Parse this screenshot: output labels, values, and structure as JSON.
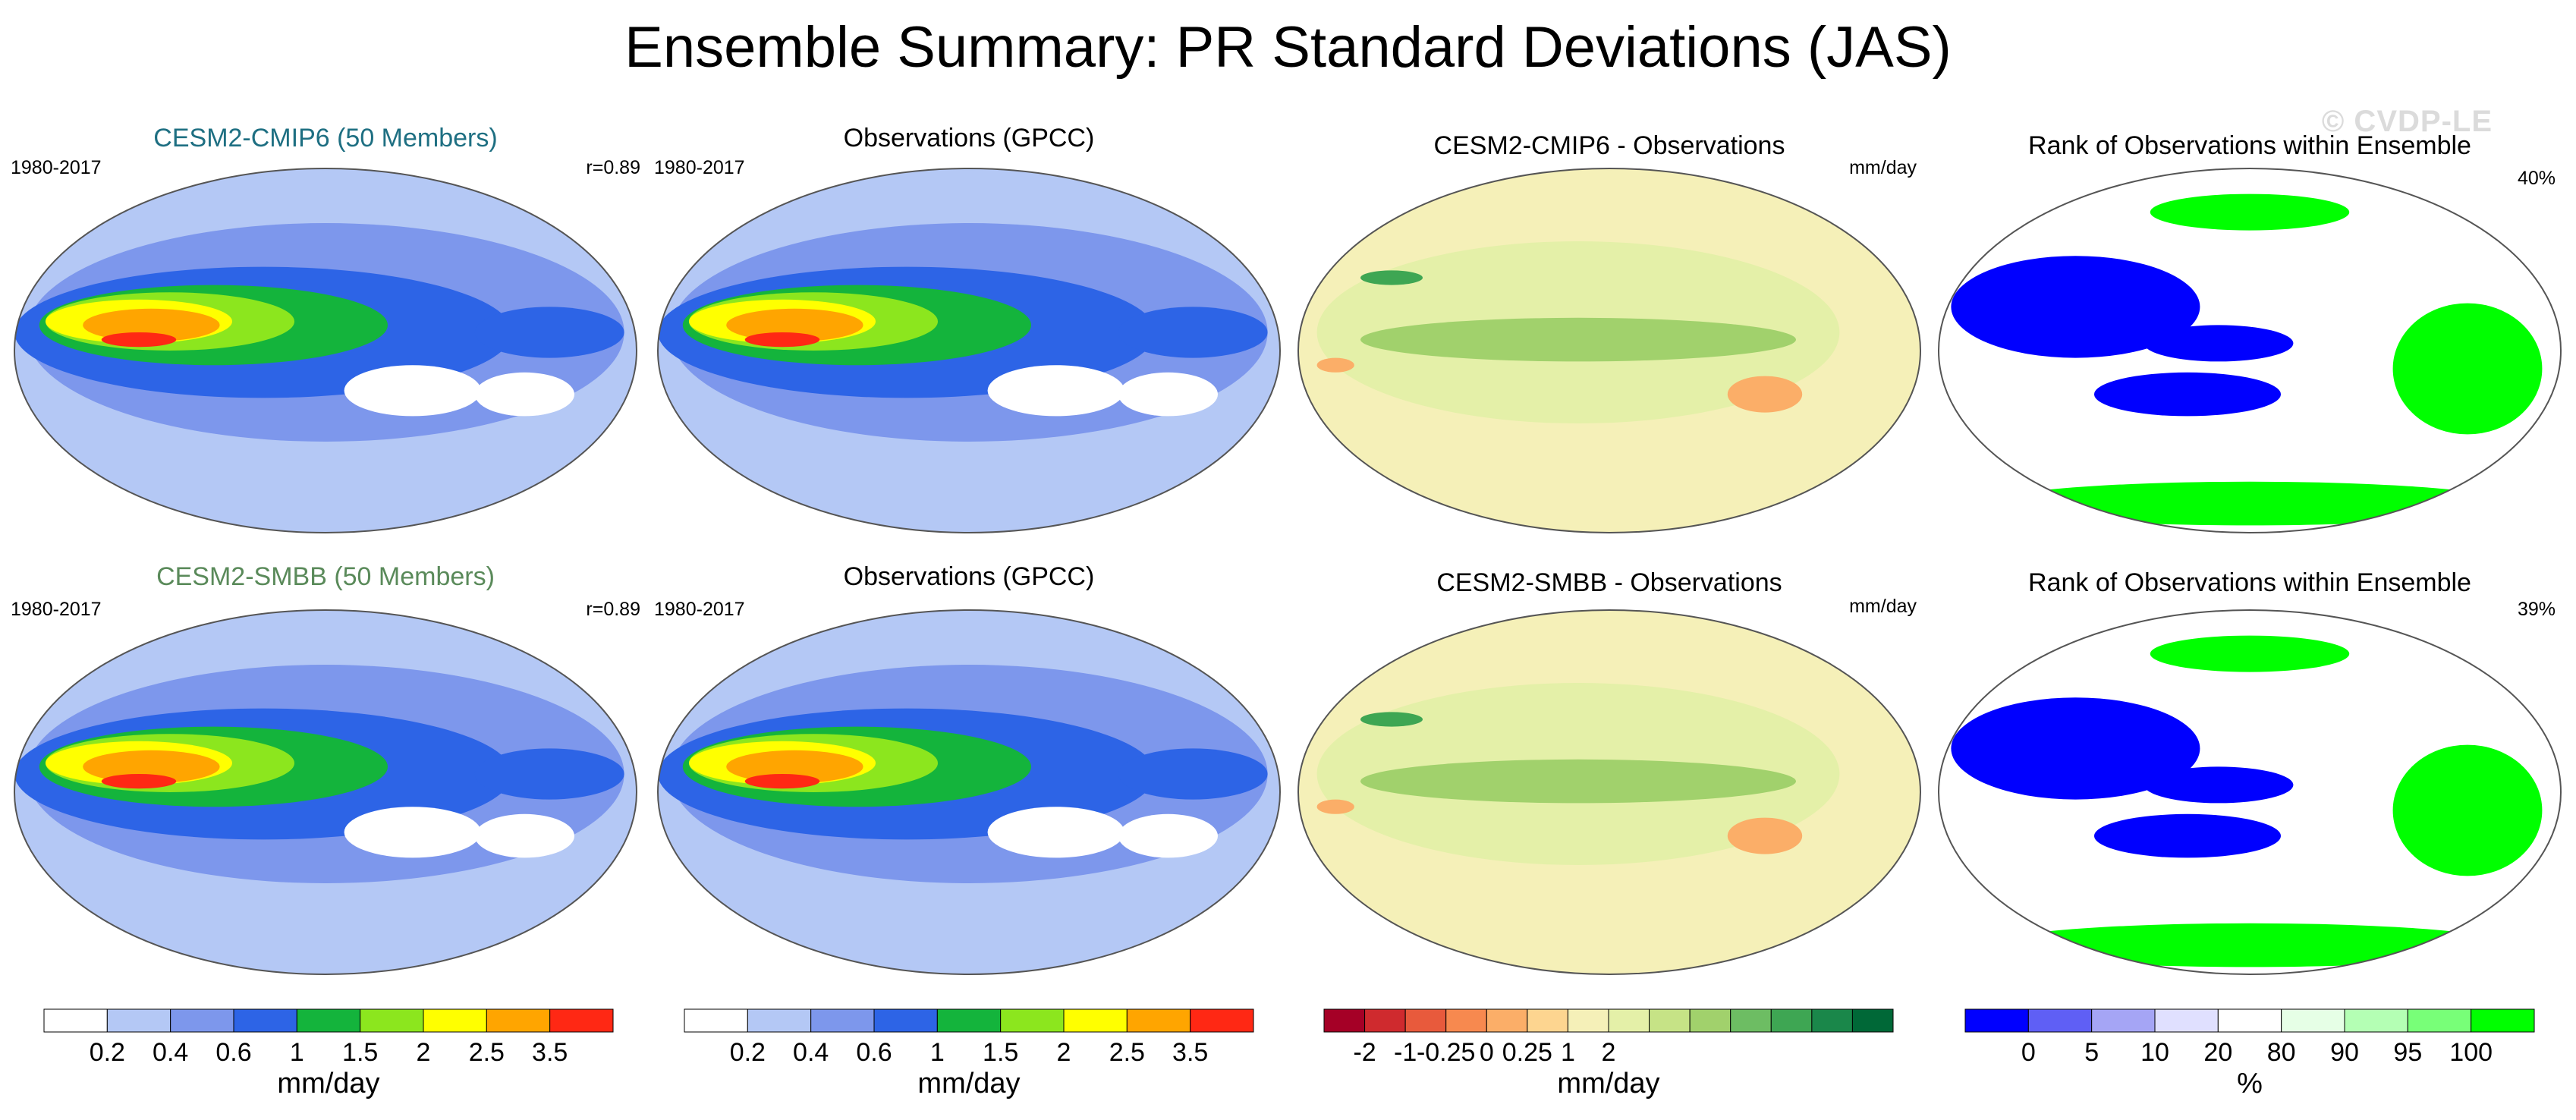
{
  "page": {
    "title": "Ensemble Summary: PR Standard Deviations (JAS)",
    "watermark": "© CVDP-LE"
  },
  "panels": [
    {
      "id": "model1",
      "title": "CESM2-CMIP6 (50 Members)",
      "title_color": "#1e6f82",
      "left_label": "1980-2017",
      "right_label": "r=0.89",
      "kind": "std"
    },
    {
      "id": "obs1",
      "title": "Observations (GPCC)",
      "title_color": "#000000",
      "left_label": "1980-2017",
      "right_label": "",
      "kind": "std"
    },
    {
      "id": "diff1",
      "title": "CESM2-CMIP6 - Observations",
      "title_color": "#000000",
      "left_label": "",
      "right_label": "mm/day",
      "kind": "diff"
    },
    {
      "id": "rank1",
      "title": "Rank of Observations within Ensemble",
      "title_color": "#000000",
      "left_label": "",
      "right_label": "40%",
      "kind": "rank"
    },
    {
      "id": "model2",
      "title": "CESM2-SMBB (50 Members)",
      "title_color": "#5a8a5a",
      "left_label": "1980-2017",
      "right_label": "r=0.89",
      "kind": "std"
    },
    {
      "id": "obs2",
      "title": "Observations (GPCC)",
      "title_color": "#000000",
      "left_label": "1980-2017",
      "right_label": "",
      "kind": "std"
    },
    {
      "id": "diff2",
      "title": "CESM2-SMBB - Observations",
      "title_color": "#000000",
      "left_label": "",
      "right_label": "mm/day",
      "kind": "diff"
    },
    {
      "id": "rank2",
      "title": "Rank of Observations within Ensemble",
      "title_color": "#000000",
      "left_label": "",
      "right_label": "39%",
      "kind": "rank"
    }
  ],
  "colorbars": [
    {
      "id": "std_model",
      "unit": "mm/day",
      "colors": [
        "#ffffff",
        "#b4c8f5",
        "#7d97ec",
        "#2d64e6",
        "#14b43c",
        "#8ce61e",
        "#ffff00",
        "#ffa500",
        "#ff2814"
      ],
      "ticks": [
        "0.2",
        "0.4",
        "0.6",
        "1",
        "1.5",
        "2",
        "2.5",
        "3.5"
      ]
    },
    {
      "id": "std_obs",
      "unit": "mm/day",
      "colors": [
        "#ffffff",
        "#b4c8f5",
        "#7d97ec",
        "#2d64e6",
        "#14b43c",
        "#8ce61e",
        "#ffff00",
        "#ffa500",
        "#ff2814"
      ],
      "ticks": [
        "0.2",
        "0.4",
        "0.6",
        "1",
        "1.5",
        "2",
        "2.5",
        "3.5"
      ]
    },
    {
      "id": "diff",
      "unit": "mm/day",
      "colors": [
        "#a50026",
        "#cf2a2e",
        "#e85a3c",
        "#f7894f",
        "#fbae68",
        "#fdd590",
        "#f5f0b8",
        "#e4f0a8",
        "#c6e386",
        "#a1d16c",
        "#6dbd63",
        "#3ea653",
        "#1a874a",
        "#006837"
      ],
      "ticks": [
        "-2",
        "-1",
        "-0.25",
        "0",
        "0.25",
        "1",
        "2"
      ]
    },
    {
      "id": "rank",
      "unit": "%",
      "colors": [
        "#0000ff",
        "#5f5ff5",
        "#a5a5f5",
        "#e0e0ff",
        "#ffffff",
        "#e6ffe6",
        "#b4ffb4",
        "#78ff78",
        "#00ff00"
      ],
      "ticks": [
        "0",
        "5",
        "10",
        "20",
        "80",
        "90",
        "95",
        "100"
      ]
    }
  ],
  "chart_data": {
    "type": "heatmap",
    "title": "Ensemble Summary: PR Standard Deviations (JAS)",
    "period": "1980-2017",
    "season": "JAS",
    "variable": "PR standard deviation",
    "maps": [
      {
        "title": "CESM2-CMIP6 (50 Members)",
        "pattern_correlation": 0.89,
        "units": "mm/day"
      },
      {
        "title": "Observations (GPCC)",
        "units": "mm/day"
      },
      {
        "title": "CESM2-CMIP6 - Observations",
        "units": "mm/day"
      },
      {
        "title": "Rank of Observations within Ensemble",
        "summary_percent": 40,
        "units": "%"
      },
      {
        "title": "CESM2-SMBB (50 Members)",
        "pattern_correlation": 0.89,
        "units": "mm/day"
      },
      {
        "title": "Observations (GPCC)",
        "units": "mm/day"
      },
      {
        "title": "CESM2-SMBB - Observations",
        "units": "mm/day"
      },
      {
        "title": "Rank of Observations within Ensemble",
        "summary_percent": 39,
        "units": "%"
      }
    ],
    "std_levels": [
      0.2,
      0.4,
      0.6,
      1,
      1.5,
      2,
      2.5,
      3.5
    ],
    "diff_levels": [
      -2,
      -1,
      -0.25,
      0,
      0.25,
      1,
      2
    ],
    "rank_levels": [
      0,
      5,
      10,
      20,
      80,
      90,
      95,
      100
    ]
  }
}
